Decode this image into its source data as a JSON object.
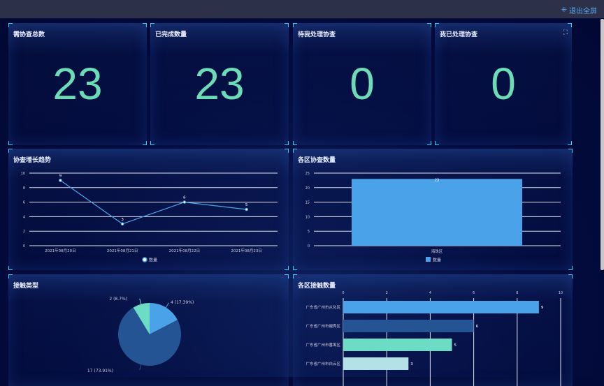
{
  "header": {
    "exit_label": "退出全屏",
    "exit_icon": "exit-fullscreen-icon"
  },
  "stats": [
    {
      "title": "需协查总数",
      "value": "23"
    },
    {
      "title": "已完成数量",
      "value": "23"
    },
    {
      "title": "待我处理协查",
      "value": "0"
    },
    {
      "title": "我已处理协查",
      "value": "0"
    }
  ],
  "colors": {
    "accent": "#6cdcb6",
    "line": "#4aa3e8",
    "bar": "#4aa3e8",
    "pie": [
      "#4aa3e8",
      "#245493",
      "#6cdcc4"
    ],
    "hbar": [
      "#4aa3e8",
      "#245493",
      "#6cdcc4",
      "#b4e0e8"
    ]
  },
  "chart_data": [
    {
      "type": "line",
      "title": "协查增长趋势",
      "categories": [
        "2021年08月20日",
        "2021年08月21日",
        "2021年08月22日",
        "2021年08月23日"
      ],
      "series": [
        {
          "name": "数量",
          "values": [
            9,
            3,
            6,
            5
          ]
        }
      ],
      "ylim": [
        0,
        10
      ],
      "yticks": [
        0,
        2,
        4,
        6,
        8,
        10
      ],
      "grid": true,
      "legend": "bottom"
    },
    {
      "type": "bar",
      "title": "各区协查数量",
      "categories": [
        "海珠区"
      ],
      "series": [
        {
          "name": "数量",
          "values": [
            23
          ]
        }
      ],
      "ylim": [
        0,
        25
      ],
      "yticks": [
        0,
        5,
        10,
        15,
        20,
        25
      ],
      "grid": true,
      "legend": "bottom"
    },
    {
      "type": "pie",
      "title": "接触类型",
      "slices": [
        {
          "value": 4,
          "label": "4 (17.39%)"
        },
        {
          "value": 17,
          "label": "17 (73.91%)"
        },
        {
          "value": 2,
          "label": "2 (8.7%)"
        }
      ]
    },
    {
      "type": "bar",
      "orientation": "horizontal",
      "title": "各区接触数量",
      "categories": [
        "广东省广州市从化区",
        "广东省广州市越秀区",
        "广东省广州市番禺区",
        "广东省广州市白云区"
      ],
      "values": [
        9,
        6,
        5,
        3
      ],
      "xlim": [
        0,
        10
      ],
      "xticks": [
        0,
        2,
        4,
        6,
        8,
        10
      ],
      "grid": true
    }
  ]
}
